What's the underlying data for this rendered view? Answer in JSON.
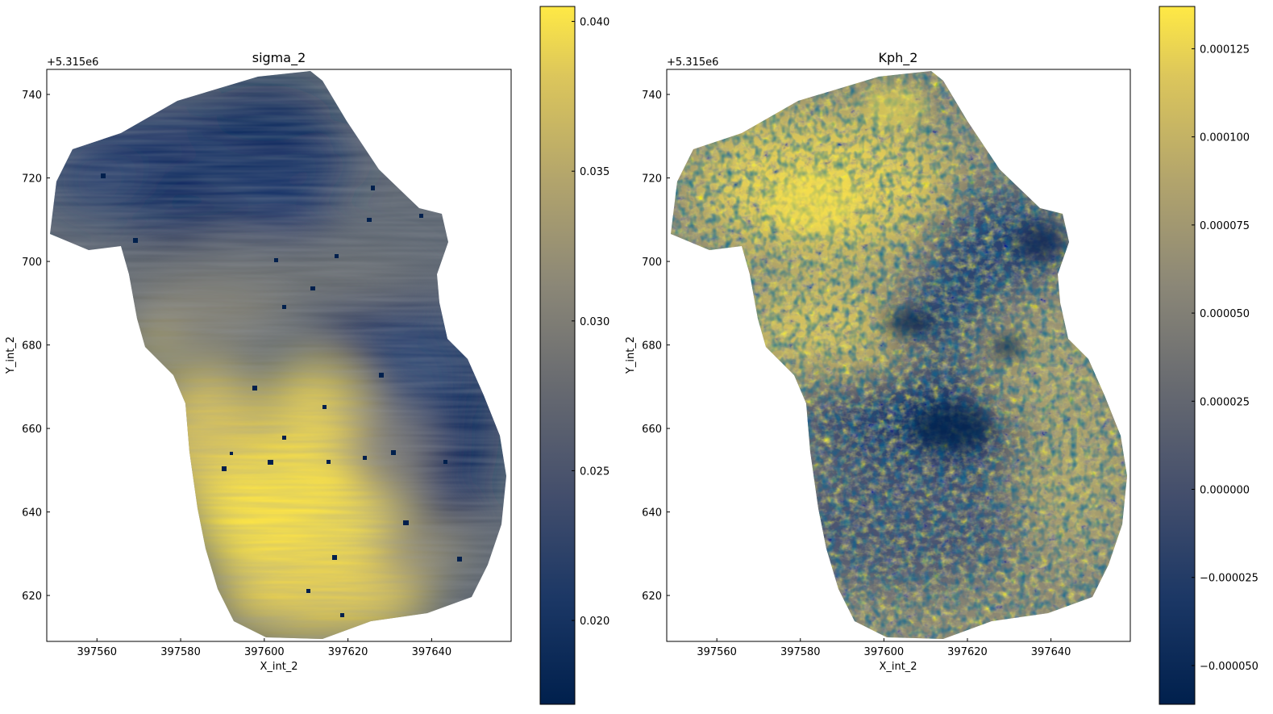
{
  "chart_data": [
    {
      "type": "heatmap",
      "title": "sigma_2",
      "xlabel": "X_int_2",
      "ylabel": "Y_int_2",
      "y_offset_label": "+5.315e6",
      "xlim": [
        397548,
        397659
      ],
      "ylim": [
        609,
        746
      ],
      "x_ticks": [
        397560,
        397580,
        397600,
        397620,
        397640
      ],
      "x_tick_labels": [
        "397560",
        "397580",
        "397600",
        "397620",
        "397640"
      ],
      "y_ticks": [
        620,
        640,
        660,
        680,
        700,
        720,
        740
      ],
      "y_tick_labels": [
        "620",
        "640",
        "660",
        "680",
        "700",
        "720",
        "740"
      ],
      "colormap": "cividis",
      "colorbar": {
        "range": [
          0.0172,
          0.0405
        ],
        "ticks": [
          0.02,
          0.025,
          0.03,
          0.035,
          0.04
        ],
        "tick_labels": [
          "0.020",
          "0.025",
          "0.030",
          "0.035",
          "0.040"
        ]
      }
    },
    {
      "type": "heatmap",
      "title": "Kph_2",
      "xlabel": "X_int_2",
      "ylabel": "Y_int_2",
      "y_offset_label": "+5.315e6",
      "xlim": [
        397548,
        397659
      ],
      "ylim": [
        609,
        746
      ],
      "x_ticks": [
        397560,
        397580,
        397600,
        397620,
        397640
      ],
      "x_tick_labels": [
        "397560",
        "397580",
        "397600",
        "397620",
        "397640"
      ],
      "y_ticks": [
        620,
        640,
        660,
        680,
        700,
        720,
        740
      ],
      "y_tick_labels": [
        "620",
        "640",
        "660",
        "680",
        "700",
        "720",
        "740"
      ],
      "colormap": "cividis",
      "colorbar": {
        "range": [
          -6.1e-05,
          0.000137
        ],
        "ticks": [
          -5e-05,
          -2.5e-05,
          0.0,
          2.5e-05,
          5e-05,
          7.5e-05,
          0.0001,
          0.000125
        ],
        "tick_labels": [
          "−0.000050",
          "−0.000025",
          "0.000000",
          "0.000025",
          "0.000050",
          "0.000075",
          "0.000100",
          "0.000125"
        ]
      }
    }
  ],
  "colors": {
    "cmap_low": "#00204d",
    "cmap_mid": "#7c7b78",
    "cmap_high": "#ffe945"
  }
}
